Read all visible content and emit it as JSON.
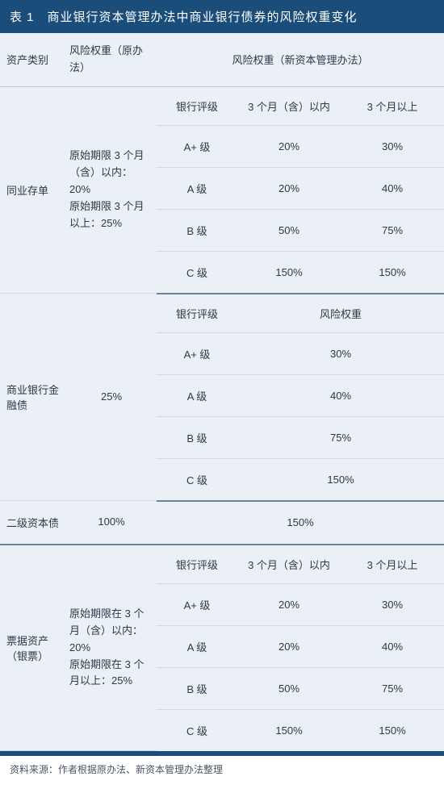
{
  "title": "表 1　商业银行资本管理办法中商业银行债券的风险权重变化",
  "headers": {
    "category": "资产类别",
    "old_weight": "风险权重（原办法）",
    "new_weight": "风险权重（新资本管理办法）"
  },
  "sub_headers": {
    "bank_rating": "银行评级",
    "within_3m": "3 个月（含）以内",
    "over_3m": "3 个月以上",
    "risk_weight": "风险权重"
  },
  "sections": {
    "interbank_cd": {
      "label": "同业存单",
      "old": "原始期限 3 个月（含）以内：20%\n原始期限 3 个月以上：25%",
      "rows": [
        {
          "rating": "A+ 级",
          "w3": "20%",
          "o3": "30%"
        },
        {
          "rating": "A 级",
          "w3": "20%",
          "o3": "40%"
        },
        {
          "rating": "B 级",
          "w3": "50%",
          "o3": "75%"
        },
        {
          "rating": "C 级",
          "w3": "150%",
          "o3": "150%"
        }
      ]
    },
    "financial_bond": {
      "label": "商业银行金融债",
      "old": "25%",
      "rows": [
        {
          "rating": "A+ 级",
          "weight": "30%"
        },
        {
          "rating": "A 级",
          "weight": "40%"
        },
        {
          "rating": "B 级",
          "weight": "75%"
        },
        {
          "rating": "C 级",
          "weight": "150%"
        }
      ]
    },
    "tier2": {
      "label": "二级资本债",
      "old": "100%",
      "new": "150%"
    },
    "bills": {
      "label": "票据资产（银票）",
      "old": "原始期限在 3 个月（含）以内：20%\n原始期限在 3 个月以上：25%",
      "rows": [
        {
          "rating": "A+ 级",
          "w3": "20%",
          "o3": "30%"
        },
        {
          "rating": "A 级",
          "w3": "20%",
          "o3": "40%"
        },
        {
          "rating": "B 级",
          "w3": "50%",
          "o3": "75%"
        },
        {
          "rating": "C 级",
          "w3": "150%",
          "o3": "150%"
        }
      ]
    }
  },
  "source": "资料来源：作者根据原办法、新资本管理办法整理",
  "colors": {
    "title_bg": "#1a4d7a",
    "table_bg": "#eaf0f5",
    "border": "#d0dae3",
    "section_border": "#6b8299",
    "text": "#2b3a4a"
  }
}
